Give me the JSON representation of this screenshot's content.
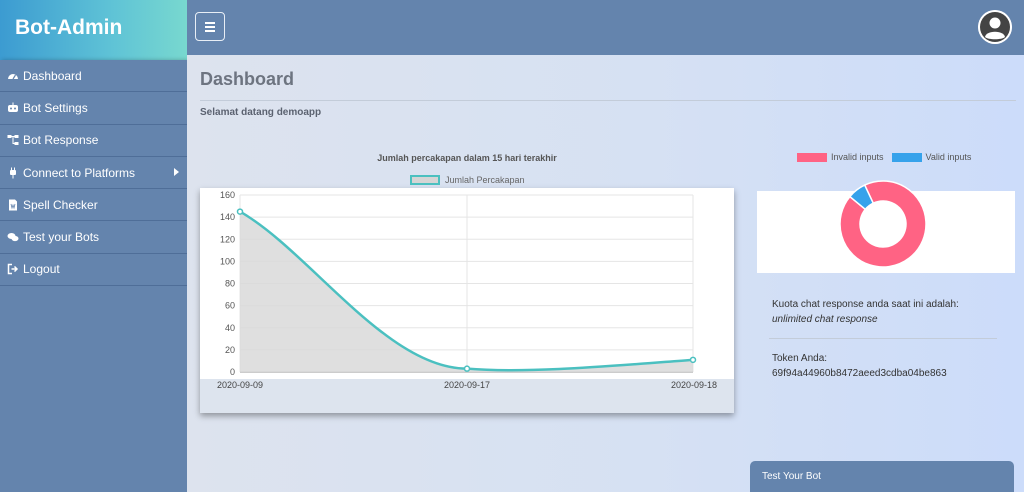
{
  "brand": {
    "title": "Bot-Admin"
  },
  "sidebar": {
    "items": [
      {
        "label": "Dashboard",
        "icon": "dashboard-icon"
      },
      {
        "label": "Bot Settings",
        "icon": "robot-icon"
      },
      {
        "label": "Bot Response",
        "icon": "sitemap-icon"
      },
      {
        "label": "Connect to Platforms",
        "icon": "plug-icon",
        "has_submenu": true
      },
      {
        "label": "Spell Checker",
        "icon": "document-icon"
      },
      {
        "label": "Test your Bots",
        "icon": "chat-icon"
      },
      {
        "label": "Logout",
        "icon": "logout-icon"
      }
    ]
  },
  "topbar": {
    "toggle_icon": "hamburger-icon",
    "avatar_icon": "user-icon"
  },
  "main": {
    "title": "Dashboard",
    "welcome": "Selamat datang demoapp",
    "quota_label": "Kuota chat response anda saat ini adalah:",
    "quota_value": "unlimited chat response",
    "token_label": "Token Anda:",
    "token_value": "69f94a44960b8472aeed3cdba04be863",
    "test_bot": "Test Your Bot"
  },
  "colors": {
    "sidebar": "#6484ad",
    "line": "#4bc0c0",
    "invalid": "#ff6384",
    "valid": "#36a2eb"
  },
  "chart_data": [
    {
      "type": "area",
      "title": "Jumlah percakapan dalam 15 hari terakhir",
      "categories": [
        "2020-09-09",
        "2020-09-17",
        "2020-09-18"
      ],
      "series": [
        {
          "name": "Jumlah Percakapan",
          "values": [
            145,
            3,
            11
          ]
        }
      ],
      "ylim": [
        0,
        160
      ],
      "yticks": [
        0,
        20,
        40,
        60,
        80,
        100,
        120,
        140,
        160
      ],
      "grid": true,
      "legend": "top"
    },
    {
      "type": "pie",
      "variant": "doughnut",
      "categories": [
        "Invalid inputs",
        "Valid inputs"
      ],
      "values": [
        93,
        7
      ],
      "legend": "top"
    }
  ]
}
